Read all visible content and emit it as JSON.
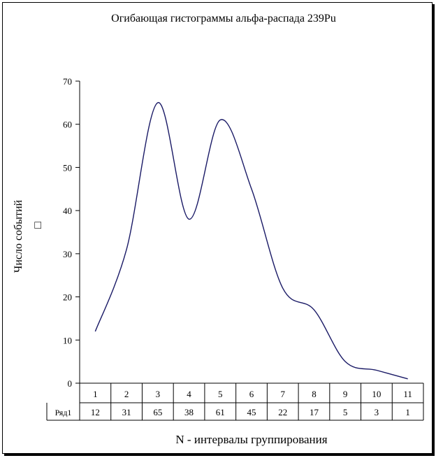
{
  "chart_data": {
    "type": "line",
    "title": "Огибающая гистограммы альфа-распада 239Pu",
    "xlabel": "N - интервалы группирования",
    "ylabel": "Число событий",
    "ylabel_symbol": "□",
    "categories": [
      "1",
      "2",
      "3",
      "4",
      "5",
      "6",
      "7",
      "8",
      "9",
      "10",
      "11"
    ],
    "series": [
      {
        "name": "Ряд1",
        "values": [
          12,
          31,
          65,
          38,
          61,
          45,
          22,
          17,
          5,
          3,
          1
        ]
      }
    ],
    "ylim": [
      0,
      70
    ],
    "yticks": [
      0,
      10,
      20,
      30,
      40,
      50,
      60,
      70
    ],
    "smooth": true,
    "data_table": true,
    "legend": "none",
    "line_color": "#1a1a66"
  }
}
